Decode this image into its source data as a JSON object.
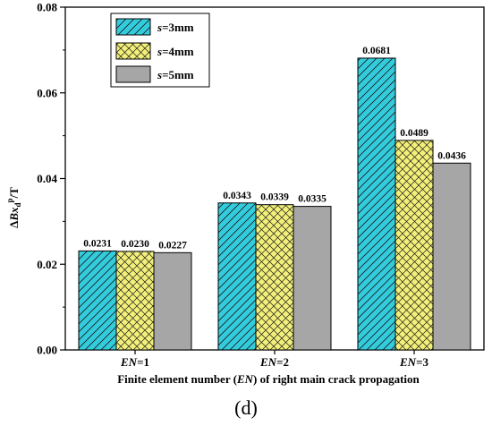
{
  "chart_data": {
    "type": "bar",
    "categories": [
      "EN=1",
      "EN=2",
      "EN=3"
    ],
    "category_parts": [
      {
        "italic": "EN",
        "rest": "=1"
      },
      {
        "italic": "EN",
        "rest": "=2"
      },
      {
        "italic": "EN",
        "rest": "=3"
      }
    ],
    "series": [
      {
        "name": "s=3mm",
        "name_italic": "s",
        "name_rest": "=3mm",
        "values": [
          0.0231,
          0.0343,
          0.0681
        ],
        "labels": [
          "0.0231",
          "0.0343",
          "0.0681"
        ],
        "color": "#33ccdd",
        "pattern": "hatch-diagonal"
      },
      {
        "name": "s=4mm",
        "name_italic": "s",
        "name_rest": "=4mm",
        "values": [
          0.023,
          0.0339,
          0.0489
        ],
        "labels": [
          "0.0230",
          "0.0339",
          "0.0489"
        ],
        "color": "#f2ef7a",
        "pattern": "crosshatch"
      },
      {
        "name": "s=5mm",
        "name_italic": "s",
        "name_rest": "=5mm",
        "values": [
          0.0227,
          0.0335,
          0.0436
        ],
        "labels": [
          "0.0227",
          "0.0335",
          "0.0436"
        ],
        "color": "#a6a6a6",
        "pattern": "solid"
      }
    ],
    "ylim": [
      0,
      0.08
    ],
    "yticks": [
      0.0,
      0.02,
      0.04,
      0.06,
      0.08
    ],
    "ytick_labels": [
      "0.00",
      "0.02",
      "0.04",
      "0.06",
      "0.08"
    ],
    "ylabel": "ΔBxdp/T",
    "ylabel_parts": {
      "prefix": "Δ",
      "italic": "Bx",
      "sub": "d",
      "sup": "p",
      "suffix": "/T"
    },
    "xlabel": "Finite element number (EN) of right main crack propagation",
    "xlabel_parts": {
      "before": "Finite element number (",
      "italic": "EN",
      "after": ") of right main crack propagation"
    },
    "panel_label": "(d)",
    "legend_position": "top-left",
    "grid": false
  }
}
